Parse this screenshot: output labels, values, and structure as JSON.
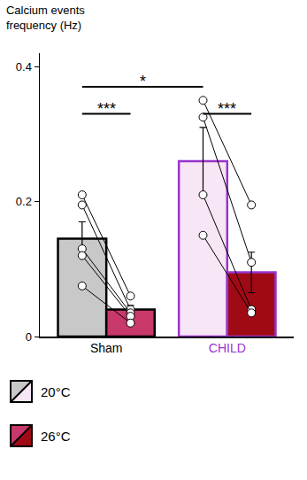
{
  "chart_data": {
    "type": "bar",
    "title": "Calcium events\nfrequency (Hz)",
    "categories": [
      "Sham",
      "CHILD"
    ],
    "ylim": [
      0,
      0.42
    ],
    "yticks": [
      0,
      0.2,
      0.4
    ],
    "grid": false,
    "series": [
      {
        "name": "20°C",
        "colors": [
          "#c8c8c8",
          "#f7e6f5"
        ],
        "values": [
          0.145,
          0.26
        ],
        "error": [
          0.025,
          0.05
        ],
        "points": [
          [
            0.21,
            0.195,
            0.13,
            0.12,
            0.075
          ],
          [
            0.35,
            0.325,
            0.21,
            0.15
          ]
        ]
      },
      {
        "name": "26°C",
        "colors": [
          "#c8386a",
          "#a00a14"
        ],
        "values": [
          0.04,
          0.095
        ],
        "error": [
          0.006,
          0.03
        ],
        "points": [
          [
            0.06,
            0.04,
            0.035,
            0.03,
            0.02
          ],
          [
            0.195,
            0.11,
            0.04,
            0.035
          ]
        ]
      }
    ],
    "significance": [
      {
        "text": "***",
        "from": {
          "category": "Sham",
          "series": "20°C"
        },
        "to": {
          "category": "Sham",
          "series": "26°C"
        },
        "y": 0.33
      },
      {
        "text": "***",
        "from": {
          "category": "CHILD",
          "series": "20°C"
        },
        "to": {
          "category": "CHILD",
          "series": "26°C"
        },
        "y": 0.33
      },
      {
        "text": "*",
        "from": {
          "category": "Sham",
          "series": "20°C"
        },
        "to": {
          "category": "CHILD",
          "series": "20°C"
        },
        "y": 0.37
      }
    ]
  }
}
